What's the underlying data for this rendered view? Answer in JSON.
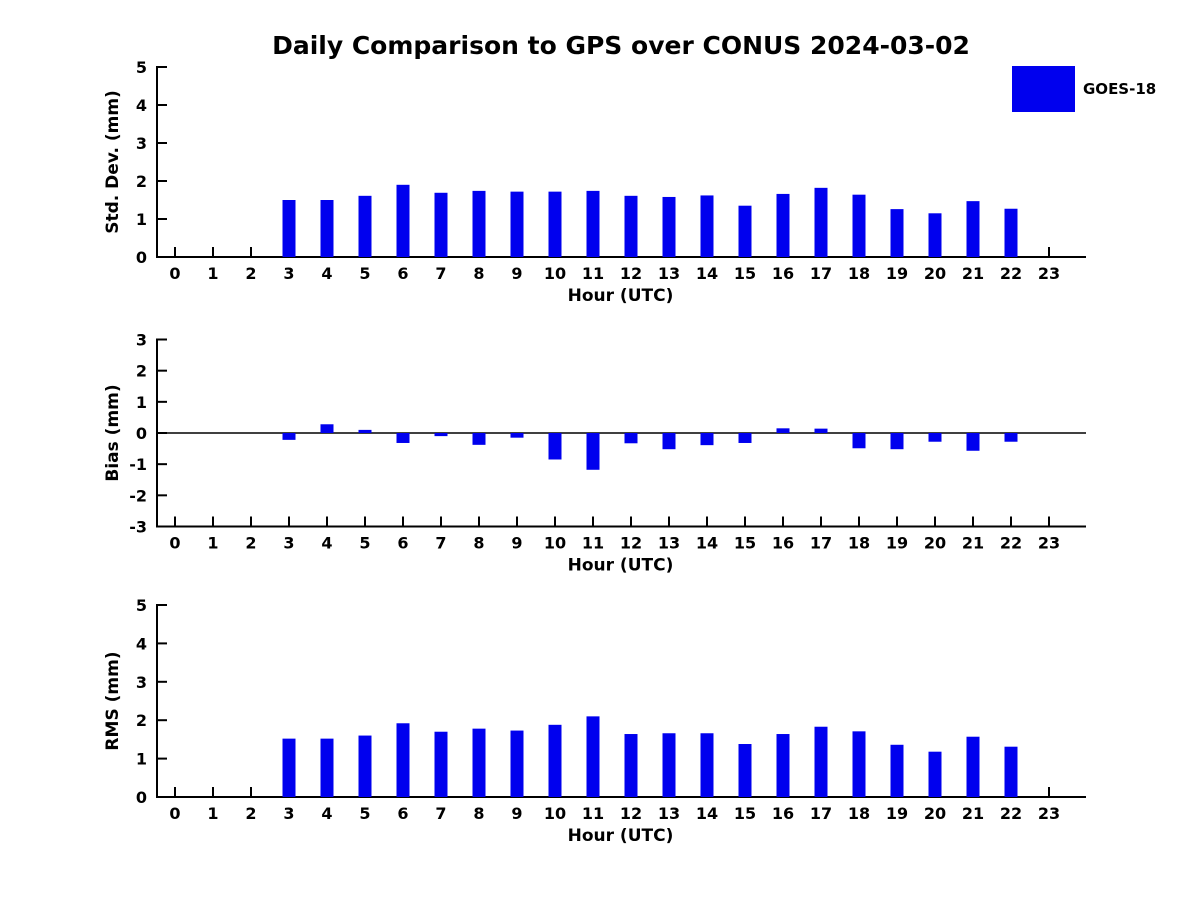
{
  "title": "Daily Comparison to GPS over CONUS 2024-03-02",
  "legend": {
    "label": "GOES-18",
    "color": "#0000ee"
  },
  "colors": {
    "bar": "#0000ee",
    "axis": "#000000",
    "background": "#ffffff"
  },
  "chart_data": [
    {
      "type": "bar",
      "name": "std-dev",
      "title": "",
      "xlabel": "Hour (UTC)",
      "ylabel": "Std. Dev. (mm)",
      "ylim": [
        0,
        5
      ],
      "yticks": [
        0,
        1,
        2,
        3,
        4,
        5
      ],
      "grid": false,
      "legend_position": "upper right",
      "categories": [
        "0",
        "1",
        "2",
        "3",
        "4",
        "5",
        "6",
        "7",
        "8",
        "9",
        "10",
        "11",
        "12",
        "13",
        "14",
        "15",
        "16",
        "17",
        "18",
        "19",
        "20",
        "21",
        "22",
        "23"
      ],
      "series": [
        {
          "name": "GOES-18",
          "values": [
            null,
            null,
            null,
            1.5,
            1.5,
            1.61,
            1.9,
            1.69,
            1.74,
            1.72,
            1.72,
            1.74,
            1.61,
            1.58,
            1.62,
            1.35,
            1.66,
            1.82,
            1.64,
            1.26,
            1.15,
            1.47,
            1.27,
            null
          ]
        }
      ]
    },
    {
      "type": "bar",
      "name": "bias",
      "title": "",
      "xlabel": "Hour (UTC)",
      "ylabel": "Bias (mm)",
      "ylim": [
        -3,
        3
      ],
      "yticks": [
        -3,
        -2,
        -1,
        0,
        1,
        2,
        3
      ],
      "zero_line": true,
      "grid": false,
      "categories": [
        "0",
        "1",
        "2",
        "3",
        "4",
        "5",
        "6",
        "7",
        "8",
        "9",
        "10",
        "11",
        "12",
        "13",
        "14",
        "15",
        "16",
        "17",
        "18",
        "19",
        "20",
        "21",
        "22",
        "23"
      ],
      "series": [
        {
          "name": "GOES-18",
          "values": [
            null,
            null,
            null,
            -0.22,
            0.28,
            0.1,
            -0.32,
            -0.1,
            -0.38,
            -0.15,
            -0.85,
            -1.18,
            -0.33,
            -0.52,
            -0.39,
            -0.32,
            0.15,
            0.14,
            -0.49,
            -0.52,
            -0.28,
            -0.57,
            -0.28,
            null
          ]
        }
      ]
    },
    {
      "type": "bar",
      "name": "rms",
      "title": "",
      "xlabel": "Hour (UTC)",
      "ylabel": "RMS (mm)",
      "ylim": [
        0,
        5
      ],
      "yticks": [
        0,
        1,
        2,
        3,
        4,
        5
      ],
      "grid": false,
      "categories": [
        "0",
        "1",
        "2",
        "3",
        "4",
        "5",
        "6",
        "7",
        "8",
        "9",
        "10",
        "11",
        "12",
        "13",
        "14",
        "15",
        "16",
        "17",
        "18",
        "19",
        "20",
        "21",
        "22",
        "23"
      ],
      "series": [
        {
          "name": "GOES-18",
          "values": [
            null,
            null,
            null,
            1.52,
            1.52,
            1.6,
            1.92,
            1.7,
            1.78,
            1.73,
            1.88,
            2.1,
            1.64,
            1.66,
            1.66,
            1.38,
            1.64,
            1.83,
            1.71,
            1.36,
            1.18,
            1.57,
            1.31,
            null
          ]
        }
      ]
    }
  ]
}
